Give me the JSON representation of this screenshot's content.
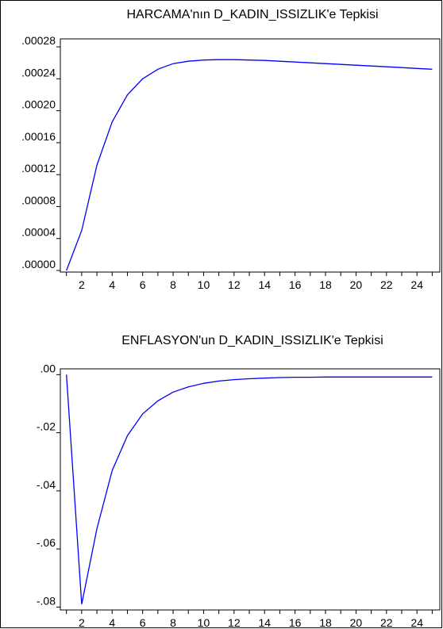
{
  "chart_data": [
    {
      "type": "line",
      "title": "HARCAMA'nın D_KADIN_ISSIZLIK'e Tepkisi",
      "xlabel": "",
      "ylabel": "",
      "x": [
        1,
        2,
        3,
        4,
        5,
        6,
        7,
        8,
        9,
        10,
        11,
        12,
        13,
        14,
        15,
        16,
        17,
        18,
        19,
        20,
        21,
        22,
        23,
        24,
        25
      ],
      "series": [
        {
          "color": "#0000ff",
          "values": [
            0.0,
            5e-05,
            0.000132,
            0.000186,
            0.00022,
            0.00024,
            0.000252,
            0.000259,
            0.000262,
            0.0002635,
            0.000264,
            0.000264,
            0.0002635,
            0.000263,
            0.000262,
            0.000261,
            0.00026,
            0.000259,
            0.000258,
            0.000257,
            0.000256,
            0.000255,
            0.000254,
            0.000253,
            0.000252
          ]
        }
      ],
      "xlim": [
        0.6,
        25.5
      ],
      "ylim": [
        -2e-06,
        0.00029
      ],
      "xticks": [
        2,
        4,
        6,
        8,
        10,
        12,
        14,
        16,
        18,
        20,
        22,
        24
      ],
      "yticks": [
        0.0,
        4e-05,
        8e-05,
        0.00012,
        0.00016,
        0.0002,
        0.00024,
        0.00028
      ],
      "ytick_labels": [
        ".00000",
        ".00004",
        ".00008",
        ".00012",
        ".00016",
        ".00020",
        ".00024",
        ".00028"
      ],
      "grid": false
    },
    {
      "type": "line",
      "title": "ENFLASYON'un D_KADIN_ISSIZLIK'e Tepkisi",
      "xlabel": "",
      "ylabel": "",
      "x": [
        1,
        2,
        3,
        4,
        5,
        6,
        7,
        8,
        9,
        10,
        11,
        12,
        13,
        14,
        15,
        16,
        17,
        18,
        19,
        20,
        21,
        22,
        23,
        24,
        25
      ],
      "series": [
        {
          "color": "#0000ff",
          "values": [
            0.0,
            -0.079,
            -0.053,
            -0.033,
            -0.021,
            -0.0135,
            -0.009,
            -0.006,
            -0.0042,
            -0.003,
            -0.0022,
            -0.0017,
            -0.0014,
            -0.0012,
            -0.001,
            -0.0009,
            -0.0009,
            -0.0008,
            -0.0008,
            -0.0008,
            -0.0008,
            -0.0008,
            -0.0008,
            -0.0008,
            -0.0008
          ]
        }
      ],
      "xlim": [
        0.6,
        25.5
      ],
      "ylim": [
        -0.081,
        0.002
      ],
      "xticks": [
        2,
        4,
        6,
        8,
        10,
        12,
        14,
        16,
        18,
        20,
        22,
        24
      ],
      "yticks": [
        0.0,
        -0.02,
        -0.04,
        -0.06,
        -0.08
      ],
      "ytick_labels": [
        ".00",
        "-.02",
        "-.04",
        "-.06",
        "-.08"
      ],
      "grid": false
    }
  ]
}
